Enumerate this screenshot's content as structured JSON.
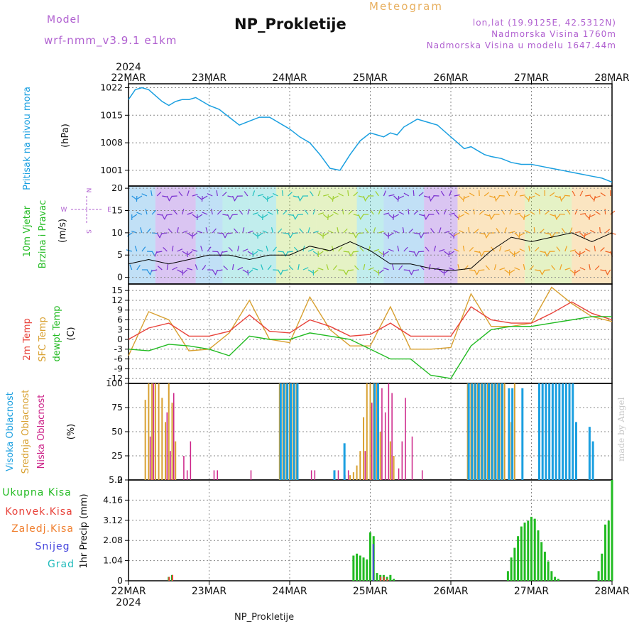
{
  "header": {
    "model_label": "Model",
    "model_name": "wrf-nmm_v3.9.1  e1km",
    "subtitle": "Meteogram",
    "title": "NP_Prokletije",
    "lonlat": "lon,lat (19.9125E, 42.5312N)",
    "elevation": "Nadmorska Visina 1760m",
    "model_elevation": "Nadmorska Visina u modelu 1647.44m",
    "footer": "NP_Prokletije",
    "credit": "made by Angel"
  },
  "colors": {
    "pressure": "#1a9fe0",
    "temp2m": "#e8423a",
    "sfc": "#d8a030",
    "dewpt": "#22bb22",
    "high_cloud": "#1a9fe0",
    "mid_cloud": "#d8a030",
    "low_cloud": "#cc2288",
    "total_precip": "#22bb22",
    "conv_precip": "#e8423a",
    "frozen": "#f08030",
    "snow": "#4444dd",
    "grad": "#22bbbb"
  },
  "chart_data": [
    {
      "id": "pressure",
      "type": "line",
      "ylabel": [
        "Pritisak na nivou mora",
        "(hPa)"
      ],
      "ylim": [
        997,
        1023
      ],
      "yticks": [
        "1001",
        "1008",
        "1015",
        "1022"
      ],
      "x_dates": [
        "22MAR",
        "23MAR",
        "24MAR",
        "25MAR",
        "26MAR",
        "27MAR",
        "28MAR"
      ],
      "year": "2024",
      "series": [
        {
          "hours": [
            0,
            2,
            4,
            6,
            8,
            10,
            12,
            14,
            16,
            18,
            20,
            22,
            24,
            27,
            30,
            33,
            36,
            39,
            42,
            44,
            46,
            48,
            51,
            54,
            57,
            60,
            63,
            66,
            69,
            72,
            74,
            76,
            78,
            80,
            82,
            84,
            86,
            88,
            90,
            92,
            94,
            96,
            98,
            100,
            102,
            104,
            106,
            108,
            111,
            114,
            117,
            120,
            123,
            126,
            129,
            132,
            135,
            138,
            141,
            144
          ],
          "values": [
            1019,
            1021.5,
            1022,
            1021.5,
            1020,
            1018.5,
            1017.5,
            1018.5,
            1019,
            1019,
            1019.5,
            1018.5,
            1017.5,
            1016.5,
            1014.5,
            1012.5,
            1013.5,
            1014.5,
            1014.5,
            1013.5,
            1012.5,
            1011.5,
            1009.5,
            1008,
            1005,
            1001.5,
            1001,
            1005,
            1008.5,
            1010.5,
            1010,
            1009.5,
            1010.5,
            1010,
            1012,
            1013,
            1014,
            1013.5,
            1013,
            1012.5,
            1011,
            1009.5,
            1008,
            1006.5,
            1007,
            1006,
            1005,
            1004.5,
            1004,
            1003,
            1002.5,
            1002.5,
            1002,
            1001.5,
            1001,
            1000.5,
            1000,
            999.5,
            999,
            998
          ]
        }
      ]
    },
    {
      "id": "wind",
      "type": "line",
      "ylabel": [
        "10m Vjetar",
        "Brzina i Pravac",
        "(m/s)"
      ],
      "ylim": [
        -1.5,
        20.5
      ],
      "yticks": [
        "0",
        "5",
        "10",
        "15",
        "20"
      ],
      "compass": [
        "N",
        "W",
        "E",
        "S"
      ],
      "series": [
        {
          "name": "speed",
          "hours": [
            0,
            6,
            12,
            18,
            24,
            30,
            36,
            42,
            48,
            54,
            60,
            66,
            72,
            78,
            84,
            90,
            96,
            102,
            108,
            114,
            120,
            126,
            132,
            138,
            144
          ],
          "values": [
            3,
            4,
            3,
            4,
            5,
            5,
            4,
            5,
            5,
            7,
            6,
            8,
            6,
            3,
            3,
            2,
            1.5,
            2,
            6,
            9,
            8,
            9,
            10,
            8,
            10
          ]
        }
      ]
    },
    {
      "id": "temperature",
      "type": "line",
      "ylabel": [
        "2m Temp",
        "SFC Temp",
        "dewpt Temp",
        "(C)"
      ],
      "ylim": [
        -13.5,
        17
      ],
      "yticks": [
        "-12",
        "-9",
        "-6",
        "-3",
        "0",
        "3",
        "6",
        "9",
        "12",
        "15"
      ],
      "series": [
        {
          "name": "2m Temp",
          "hours": [
            0,
            6,
            12,
            18,
            24,
            30,
            36,
            42,
            48,
            54,
            60,
            66,
            72,
            78,
            84,
            90,
            96,
            102,
            108,
            114,
            120,
            126,
            132,
            138,
            144
          ],
          "values": [
            0,
            3.5,
            5,
            1,
            1,
            2.5,
            7.5,
            2.5,
            2,
            6,
            4,
            1,
            1.5,
            5,
            1,
            1,
            1,
            10,
            6,
            5,
            5,
            8,
            11.5,
            8,
            6
          ]
        },
        {
          "name": "SFC Temp",
          "hours": [
            0,
            6,
            12,
            18,
            24,
            30,
            36,
            42,
            48,
            54,
            60,
            66,
            72,
            78,
            84,
            90,
            96,
            102,
            108,
            114,
            120,
            126,
            132,
            138,
            144
          ],
          "values": [
            -5,
            8.5,
            6,
            -3.5,
            -3,
            2,
            12,
            0,
            -1,
            13,
            3,
            -2,
            -2,
            10,
            -3,
            -3,
            -2.5,
            14,
            4,
            4,
            5,
            16,
            11,
            7,
            5.5
          ]
        },
        {
          "name": "dewpt Temp",
          "hours": [
            0,
            6,
            12,
            18,
            24,
            30,
            36,
            42,
            48,
            54,
            60,
            66,
            72,
            78,
            84,
            90,
            96,
            102,
            108,
            114,
            120,
            126,
            132,
            138,
            144
          ],
          "values": [
            -3,
            -3.5,
            -1.5,
            -2,
            -3,
            -5,
            1,
            0,
            0,
            2,
            1,
            0,
            -3,
            -6,
            -6,
            -11,
            -12,
            -2,
            3,
            4,
            4,
            5,
            6,
            7,
            7
          ]
        }
      ]
    },
    {
      "id": "clouds",
      "type": "bar",
      "ylabel": [
        "Visoka Oblacnost",
        "Srednja Oblacnost",
        "Niska Oblacnost",
        "(%)"
      ],
      "ylim": [
        0,
        100
      ],
      "yticks": [
        "0",
        "25",
        "50",
        "75",
        "100"
      ],
      "series": [
        {
          "name": "Srednja Oblacnost",
          "hours": [
            5,
            6,
            7,
            8,
            9,
            10,
            11,
            12,
            13,
            14,
            45,
            46,
            47,
            48,
            49,
            50,
            66,
            67,
            68,
            69,
            70,
            71,
            72,
            73,
            74,
            75,
            78,
            79,
            101,
            102,
            103,
            104,
            105,
            106,
            107,
            108,
            109,
            110,
            111,
            112,
            114,
            115
          ],
          "values": [
            83,
            100,
            100,
            100,
            100,
            85,
            60,
            100,
            80,
            40,
            100,
            100,
            100,
            100,
            100,
            100,
            5,
            8,
            15,
            30,
            65,
            100,
            100,
            100,
            100,
            50,
            40,
            25,
            100,
            100,
            100,
            100,
            100,
            100,
            100,
            100,
            100,
            100,
            100,
            100,
            60,
            100
          ]
        },
        {
          "name": "Niska Oblacnost",
          "hours": [
            6,
            7,
            11,
            12,
            13,
            16,
            17,
            18,
            25,
            26,
            36,
            54,
            55,
            61,
            62,
            64,
            65,
            70,
            72,
            73,
            74,
            75,
            76,
            77,
            78,
            80,
            81,
            82,
            84,
            87
          ],
          "values": [
            45,
            100,
            70,
            30,
            90,
            25,
            10,
            40,
            10,
            10,
            10,
            10,
            10,
            10,
            10,
            5,
            10,
            30,
            80,
            100,
            65,
            95,
            70,
            100,
            90,
            12,
            40,
            85,
            45,
            10
          ]
        },
        {
          "name": "Visoka Oblacnost",
          "hours": [
            45,
            46,
            47,
            48,
            49,
            50,
            61,
            64,
            73,
            74,
            101,
            102,
            103,
            104,
            105,
            106,
            107,
            108,
            109,
            110,
            111,
            113,
            114,
            117,
            122,
            123,
            124,
            125,
            126,
            127,
            128,
            129,
            130,
            131,
            132,
            133,
            137,
            138
          ],
          "values": [
            100,
            100,
            100,
            100,
            100,
            100,
            10,
            38,
            100,
            100,
            100,
            100,
            100,
            100,
            100,
            100,
            100,
            100,
            100,
            100,
            100,
            95,
            95,
            95,
            100,
            100,
            100,
            100,
            100,
            100,
            100,
            100,
            100,
            100,
            100,
            60,
            55,
            40
          ]
        }
      ]
    },
    {
      "id": "precip",
      "type": "bar",
      "ylabel": [
        "1hr Precip (mm)"
      ],
      "ylim": [
        0,
        5.2
      ],
      "yticks": [
        "0",
        "1.04",
        "2.08",
        "3.12",
        "4.16",
        "5.2"
      ],
      "legend": [
        "Ukupna Kisa",
        "Konvek.Kisa",
        "Zaledj.Kisa",
        "Snijeg",
        "Grad"
      ],
      "x_dates": [
        "22MAR",
        "23MAR",
        "24MAR",
        "25MAR",
        "26MAR",
        "27MAR",
        "28MAR"
      ],
      "year": "2024",
      "series": [
        {
          "name": "Ukupna Kisa",
          "hours": [
            12,
            13,
            67,
            68,
            69,
            70,
            71,
            72,
            73,
            74,
            75,
            76,
            77,
            78,
            79,
            113,
            114,
            115,
            116,
            117,
            118,
            119,
            120,
            121,
            122,
            123,
            124,
            125,
            126,
            127,
            128,
            140,
            141,
            142,
            143,
            144
          ],
          "values": [
            0.2,
            0.3,
            1.3,
            1.4,
            1.3,
            1.2,
            1.1,
            2.5,
            2.3,
            0.4,
            0.3,
            0.3,
            0.2,
            0.3,
            0.1,
            0.5,
            1.2,
            1.7,
            2.3,
            2.8,
            3,
            3.1,
            3.3,
            3.2,
            2.6,
            2,
            1.5,
            1,
            0.5,
            0.2,
            0.1,
            0.5,
            1.4,
            2.9,
            3.1,
            5.2
          ]
        },
        {
          "name": "Konvek.Kisa",
          "hours": [
            12,
            13,
            75,
            76,
            77
          ],
          "values": [
            0.2,
            0.3,
            0.2,
            0.2,
            0.1
          ]
        },
        {
          "name": "Snijeg",
          "hours": [
            73
          ],
          "values": [
            1.9
          ]
        }
      ]
    }
  ]
}
